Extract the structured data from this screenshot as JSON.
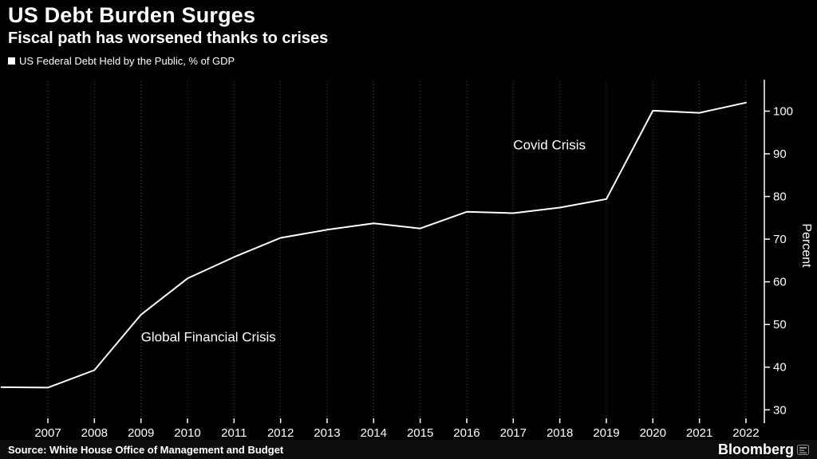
{
  "header": {
    "title": "US Debt Burden Surges",
    "subtitle": "Fiscal path has worsened thanks to crises"
  },
  "legend": {
    "label": "US Federal Debt Held by the Public, % of GDP",
    "marker_color": "#ffffff"
  },
  "footer": {
    "source": "Source: White House Office of Management and Budget",
    "brand": "Bloomberg"
  },
  "colors": {
    "background": "#000000",
    "line": "#ffffff",
    "text": "#ffffff"
  },
  "chart_data": {
    "type": "line",
    "title": "US Debt Burden Surges",
    "subtitle": "Fiscal path has worsened thanks to crises",
    "x": [
      2006,
      2007,
      2008,
      2009,
      2010,
      2011,
      2012,
      2013,
      2014,
      2015,
      2016,
      2017,
      2018,
      2019,
      2020,
      2021,
      2022
    ],
    "series": [
      {
        "name": "US Federal Debt Held by the Public, % of GDP",
        "color": "#ffffff",
        "values": [
          35.3,
          35.2,
          39.3,
          52.3,
          60.8,
          65.8,
          70.3,
          72.2,
          73.7,
          72.5,
          76.4,
          76.1,
          77.4,
          79.4,
          100.1,
          99.6,
          102.0
        ]
      }
    ],
    "xticks": [
      2007,
      2008,
      2009,
      2010,
      2011,
      2012,
      2013,
      2014,
      2015,
      2016,
      2017,
      2018,
      2019,
      2020,
      2021,
      2022
    ],
    "yticks": [
      30,
      40,
      50,
      60,
      70,
      80,
      90,
      100
    ],
    "ylim": [
      28,
      107
    ],
    "ylabel": "Percent",
    "grid": "dotted-vertical",
    "legend_position": "top-left",
    "axis_side": "right",
    "annotations": [
      {
        "text": "Global Financial Crisis",
        "x": 2009,
        "y": 46
      },
      {
        "text": "Covid Crisis",
        "x": 2017,
        "y": 91
      }
    ]
  }
}
